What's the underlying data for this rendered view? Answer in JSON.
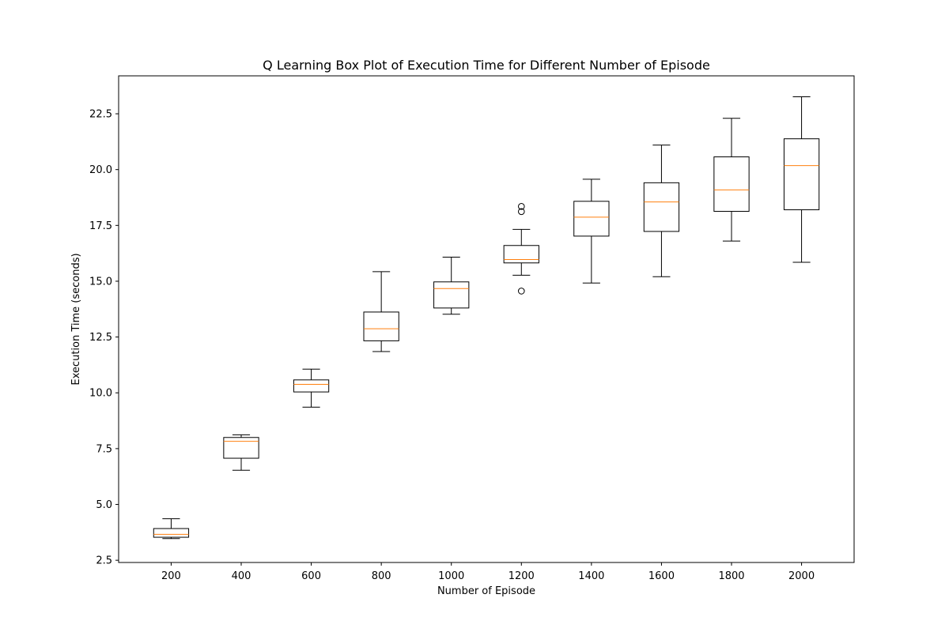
{
  "chart_data": {
    "type": "box",
    "title": "Q Learning Box Plot of Execution Time for Different Number of Episode",
    "xlabel": "Number of Episode",
    "ylabel": "Execution Time (seconds)",
    "ylim": [
      2.4,
      24.2
    ],
    "yticks": [
      "2.5",
      "5.0",
      "7.5",
      "10.0",
      "12.5",
      "15.0",
      "17.5",
      "20.0",
      "22.5"
    ],
    "ytick_values": [
      2.5,
      5.0,
      7.5,
      10.0,
      12.5,
      15.0,
      17.5,
      20.0,
      22.5
    ],
    "grid": false,
    "colors": {
      "box": "#000000",
      "median": "#ff7f0e",
      "axes": "#000000"
    },
    "categories": [
      "200",
      "400",
      "600",
      "800",
      "1000",
      "1200",
      "1400",
      "1600",
      "1800",
      "2000"
    ],
    "boxes": [
      {
        "category": "200",
        "whisker_low": 3.47,
        "q1": 3.53,
        "median": 3.66,
        "q3": 3.92,
        "whisker_high": 4.36,
        "outliers": []
      },
      {
        "category": "400",
        "whisker_low": 6.53,
        "q1": 7.07,
        "median": 7.83,
        "q3": 8.0,
        "whisker_high": 8.12,
        "outliers": []
      },
      {
        "category": "600",
        "whisker_low": 9.36,
        "q1": 10.04,
        "median": 10.38,
        "q3": 10.58,
        "whisker_high": 11.06,
        "outliers": []
      },
      {
        "category": "800",
        "whisker_low": 11.85,
        "q1": 12.33,
        "median": 12.87,
        "q3": 13.62,
        "whisker_high": 15.43,
        "outliers": []
      },
      {
        "category": "1000",
        "whisker_low": 13.52,
        "q1": 13.8,
        "median": 14.67,
        "q3": 14.97,
        "whisker_high": 16.08,
        "outliers": []
      },
      {
        "category": "1200",
        "whisker_low": 15.27,
        "q1": 15.82,
        "median": 15.97,
        "q3": 16.6,
        "whisker_high": 17.32,
        "outliers": [
          14.56,
          18.12,
          18.35
        ]
      },
      {
        "category": "1400",
        "whisker_low": 14.92,
        "q1": 17.02,
        "median": 17.87,
        "q3": 18.58,
        "whisker_high": 19.57,
        "outliers": []
      },
      {
        "category": "1600",
        "whisker_low": 15.2,
        "q1": 17.23,
        "median": 18.55,
        "q3": 19.41,
        "whisker_high": 21.1,
        "outliers": []
      },
      {
        "category": "1800",
        "whisker_low": 16.8,
        "q1": 18.13,
        "median": 19.09,
        "q3": 20.57,
        "whisker_high": 22.3,
        "outliers": []
      },
      {
        "category": "2000",
        "whisker_low": 15.85,
        "q1": 18.2,
        "median": 20.18,
        "q3": 21.38,
        "whisker_high": 23.26,
        "outliers": []
      }
    ]
  }
}
